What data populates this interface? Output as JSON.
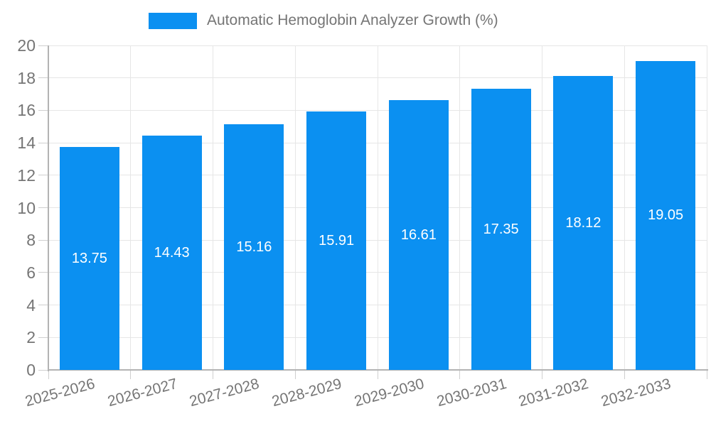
{
  "legend": {
    "label": "Automatic Hemoglobin Analyzer Growth (%)"
  },
  "chart_data": {
    "type": "bar",
    "title": "Automatic Hemoglobin Analyzer Growth (%)",
    "categories": [
      "2025-2026",
      "2026-2027",
      "2027-2028",
      "2028-2029",
      "2029-2030",
      "2030-2031",
      "2031-2032",
      "2032-2033"
    ],
    "values": [
      13.75,
      14.43,
      15.16,
      15.91,
      16.61,
      17.35,
      18.12,
      19.05
    ],
    "value_labels": [
      "13.75",
      "14.43",
      "15.16",
      "15.91",
      "16.61",
      "17.35",
      "18.12",
      "19.05"
    ],
    "xlabel": "",
    "ylabel": "",
    "ylim": [
      0,
      20
    ],
    "ytick_step": 2,
    "legend_position": "top",
    "grid": "on",
    "colors": {
      "bar": "#0b90f1",
      "value_label": "#ffffff",
      "axis_text": "#757575",
      "grid_line": "#e6e6e6",
      "axis_line": "#b3b3b3",
      "tick_mark": "#cfcfcf",
      "background": "#ffffff"
    }
  }
}
